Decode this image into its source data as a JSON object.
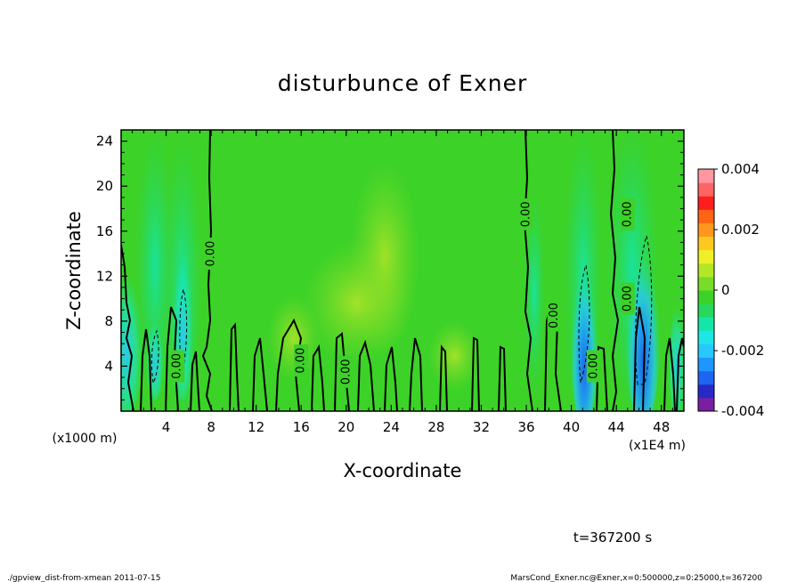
{
  "chart_data": {
    "type": "heatmap",
    "title": "disturbunce of Exner",
    "xlabel": "X-coordinate",
    "ylabel": "Z-coordinate",
    "x_unit_label": "(x1E4 m)",
    "y_unit_label": "(x1000 m)",
    "xlim": [
      0,
      50
    ],
    "ylim": [
      0,
      25
    ],
    "x_ticks": [
      4,
      8,
      12,
      16,
      20,
      24,
      28,
      32,
      36,
      40,
      44,
      48
    ],
    "y_ticks": [
      4,
      8,
      12,
      16,
      20,
      24
    ],
    "colorbar": {
      "range": [
        -0.004,
        0.004
      ],
      "tick_labels": [
        "0.004",
        "0.002",
        "0",
        "-0.002",
        "-0.004"
      ],
      "tick_values": [
        0.004,
        0.002,
        0,
        -0.002,
        -0.004
      ],
      "colors": [
        "#7a1fa2",
        "#2828c8",
        "#1e64f0",
        "#1e96ff",
        "#28c8ff",
        "#1ee6e6",
        "#14e6aa",
        "#28d85a",
        "#3cd228",
        "#78dc28",
        "#b4e628",
        "#f0f028",
        "#ffc81e",
        "#ff961e",
        "#ff6414",
        "#ff1e1e",
        "#ff6464",
        "#ff96a0"
      ]
    },
    "contour_labels": [
      {
        "text": "0.00",
        "x": 8.0,
        "z": 14.0
      },
      {
        "text": "0.00",
        "x": 36.0,
        "z": 17.5
      },
      {
        "text": "0.00",
        "x": 45.0,
        "z": 17.5
      },
      {
        "text": "0.00",
        "x": 5.0,
        "z": 4.0
      },
      {
        "text": "0.00",
        "x": 16.0,
        "z": 4.5
      },
      {
        "text": "0.00",
        "x": 20.0,
        "z": 3.5
      },
      {
        "text": "0.00",
        "x": 38.5,
        "z": 8.5
      },
      {
        "text": "0.00",
        "x": 42.0,
        "z": 4.0
      },
      {
        "text": "0.00",
        "x": 45.0,
        "z": 10.0
      }
    ],
    "annotation": "t=367200 s",
    "grid": false
  },
  "footer": {
    "left": "./gpview_dist-from-xmean  2011-07-15",
    "right": "MarsCond_Exner.nc@Exner,x=0:500000,z=0:25000,t=367200"
  }
}
